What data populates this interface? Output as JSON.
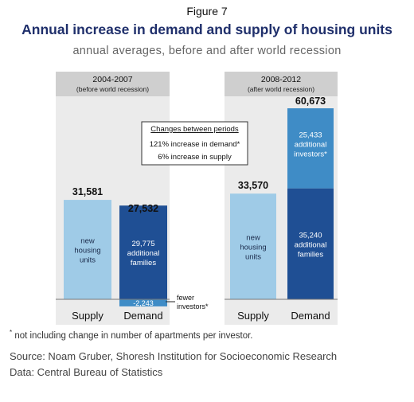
{
  "figure_label": "Figure 7",
  "title": "Annual increase in demand and supply of housing units",
  "subtitle": "annual averages, before and after world recession",
  "footnote_mark": "*",
  "footnote": " not including change in number of apartments per investor.",
  "source": "Source: Noam Gruber, Shoresh Institution for Socioeconomic Research",
  "data_source": "Data: Central Bureau of Statistics",
  "changes_box": {
    "title": "Changes between periods",
    "line1": "121% increase in demand*",
    "line2": "6% increase in supply"
  },
  "colors": {
    "supply": "#9fcbe7",
    "families": "#1f4f94",
    "investors": "#3f8cc6",
    "panel": "#ebebeb",
    "panel_header": "#cfcfcf"
  },
  "chart_data": {
    "type": "bar",
    "stacked": true,
    "ylim": [
      -3000,
      66000
    ],
    "categories": [
      "Supply",
      "Demand"
    ],
    "panels": [
      {
        "period": "2004-2007",
        "period_note": "(before world recession)",
        "supply": {
          "total": 31581,
          "total_label": "31,581",
          "segments": [
            {
              "value": 31581,
              "label_lines": [
                "new",
                "housing",
                "units"
              ]
            }
          ]
        },
        "demand": {
          "total": 27532,
          "total_label": "27,532",
          "families": 29775,
          "families_label_lines": [
            "29,775",
            "additional",
            "families"
          ],
          "investors": -2243,
          "investors_label": "-2,243",
          "callout_lines": [
            "fewer",
            "investors*"
          ]
        }
      },
      {
        "period": "2008-2012",
        "period_note": "(after world recession)",
        "supply": {
          "total": 33570,
          "total_label": "33,570",
          "segments": [
            {
              "value": 33570,
              "label_lines": [
                "new",
                "housing",
                "units"
              ]
            }
          ]
        },
        "demand": {
          "total": 60673,
          "total_label": "60,673",
          "families": 35240,
          "families_label_lines": [
            "35,240",
            "additional",
            "families"
          ],
          "investors": 25433,
          "investors_label_lines": [
            "25,433",
            "additional",
            "investors*"
          ]
        }
      }
    ]
  }
}
